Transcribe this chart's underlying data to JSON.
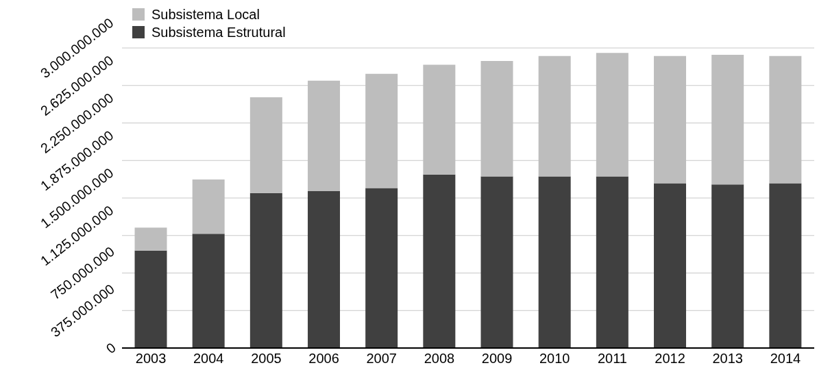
{
  "chart_data": {
    "type": "bar",
    "stacked": true,
    "categories": [
      "2003",
      "2004",
      "2005",
      "2006",
      "2007",
      "2008",
      "2009",
      "2010",
      "2011",
      "2012",
      "2013",
      "2014"
    ],
    "series": [
      {
        "name": "Subsistema Estrutural",
        "color": "#404040",
        "values": [
          975000000,
          1142000000,
          1549000000,
          1568000000,
          1599000000,
          1735000000,
          1716000000,
          1716000000,
          1716000000,
          1648000000,
          1636000000,
          1648000000
        ]
      },
      {
        "name": "Subsistema Local",
        "color": "#bdbdbd",
        "values": [
          229000000,
          543000000,
          957000000,
          1105000000,
          1142000000,
          1098000000,
          1154000000,
          1204000000,
          1235000000,
          1272000000,
          1296000000,
          1272000000
        ]
      }
    ],
    "ylim": [
      0,
      3000000000
    ],
    "yticks": [
      {
        "value": 0,
        "label": "0"
      },
      {
        "value": 375000000,
        "label": "375.000.000"
      },
      {
        "value": 750000000,
        "label": "750.000.000"
      },
      {
        "value": 1125000000,
        "label": "1.125.000.000"
      },
      {
        "value": 1500000000,
        "label": "1.500.000.000"
      },
      {
        "value": 1875000000,
        "label": "1.875.000.000"
      },
      {
        "value": 2250000000,
        "label": "2.250.000.000"
      },
      {
        "value": 2625000000,
        "label": "2.625.000.000"
      },
      {
        "value": 3000000000,
        "label": "3.000.000.000"
      }
    ],
    "grid": "y",
    "legend": "top left"
  }
}
